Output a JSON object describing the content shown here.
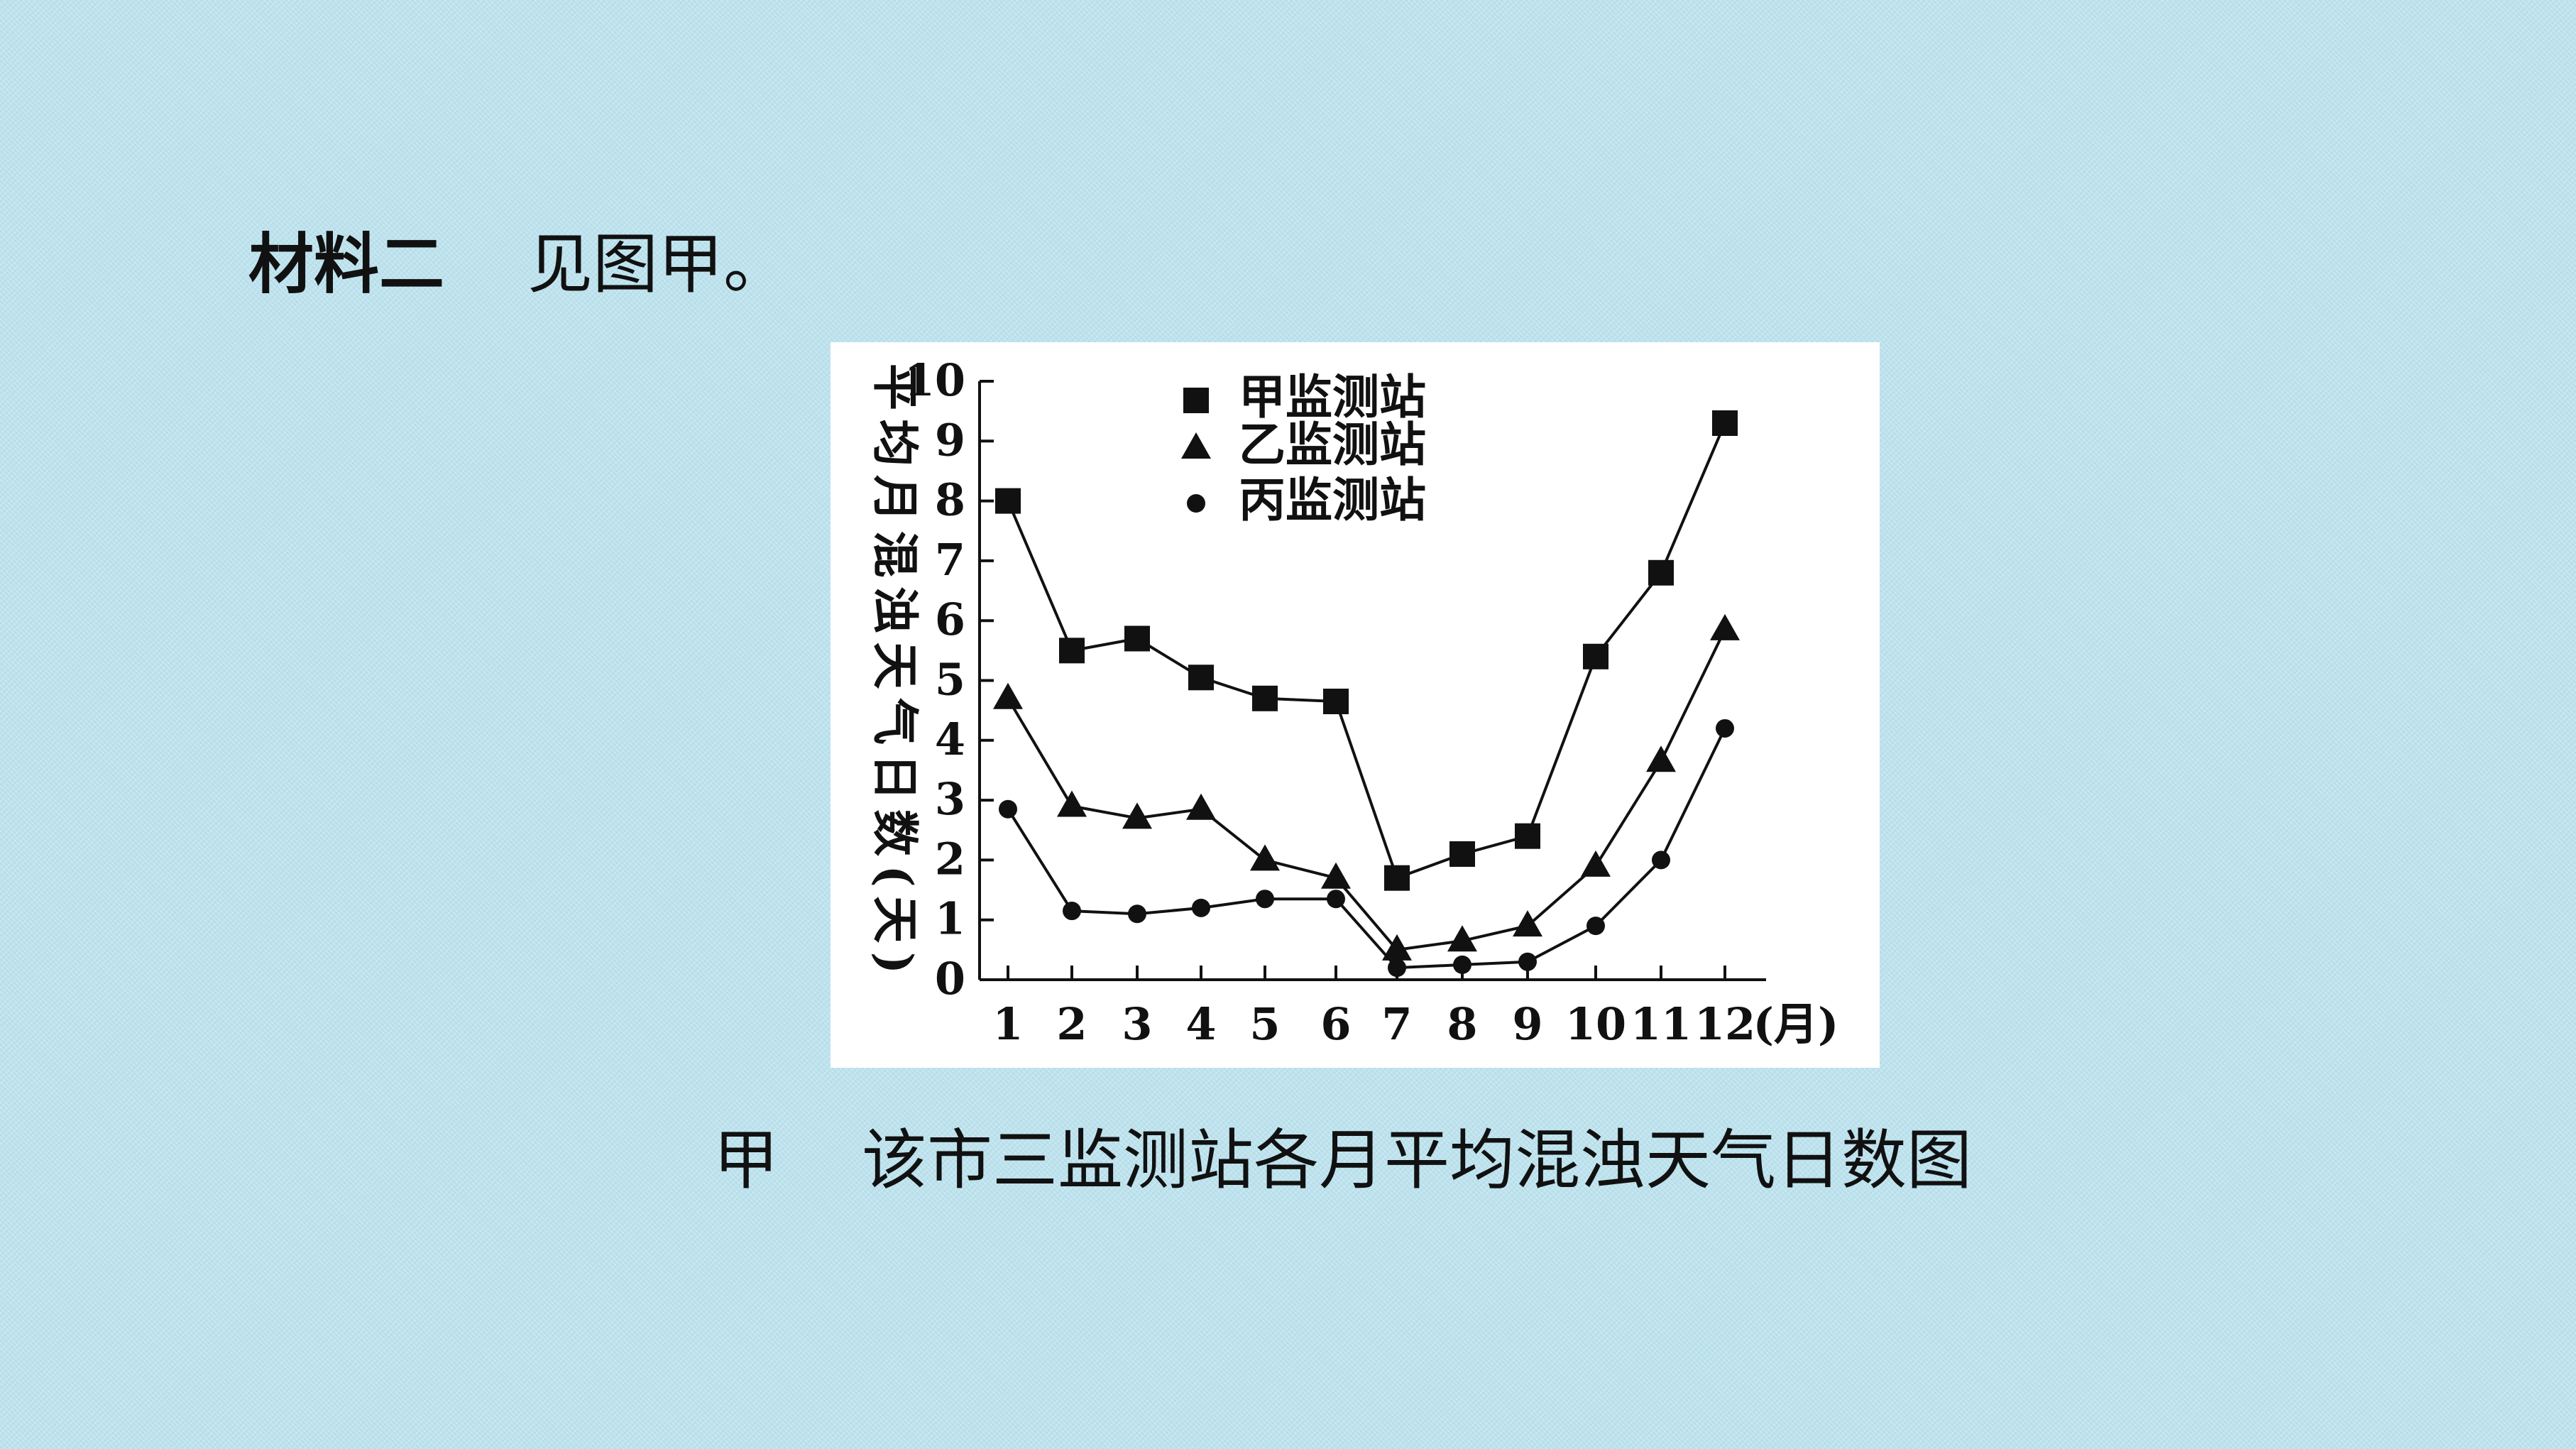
{
  "heading": {
    "label": "材料二",
    "text": "见图甲。"
  },
  "caption": {
    "label": "甲",
    "text": "该市三监测站各月平均混浊天气日数图"
  },
  "chart_data": {
    "type": "line",
    "ylabel": "平均月混浊天气日数(天)",
    "xlabel": "(月)",
    "categories": [
      "1",
      "2",
      "3",
      "4",
      "5",
      "6",
      "7",
      "8",
      "9",
      "10",
      "11",
      "12"
    ],
    "ylim": [
      0,
      10
    ],
    "yticks": [
      "0",
      "1",
      "2",
      "3",
      "4",
      "5",
      "6",
      "7",
      "8",
      "9",
      "10"
    ],
    "grid": false,
    "legend_position": "top-center",
    "series": [
      {
        "name": "甲监测站",
        "marker": "square",
        "values": [
          8.0,
          5.5,
          5.7,
          5.05,
          4.7,
          4.65,
          1.7,
          2.1,
          2.4,
          5.4,
          6.8,
          9.3
        ]
      },
      {
        "name": "乙监测站",
        "marker": "triangle",
        "values": [
          4.7,
          2.9,
          2.7,
          2.85,
          2.0,
          1.7,
          0.5,
          0.65,
          0.9,
          1.9,
          3.65,
          5.85
        ]
      },
      {
        "name": "丙监测站",
        "marker": "circle",
        "values": [
          2.85,
          1.15,
          1.1,
          1.2,
          1.35,
          1.35,
          0.2,
          0.25,
          0.3,
          0.9,
          2.0,
          4.2
        ]
      }
    ]
  }
}
